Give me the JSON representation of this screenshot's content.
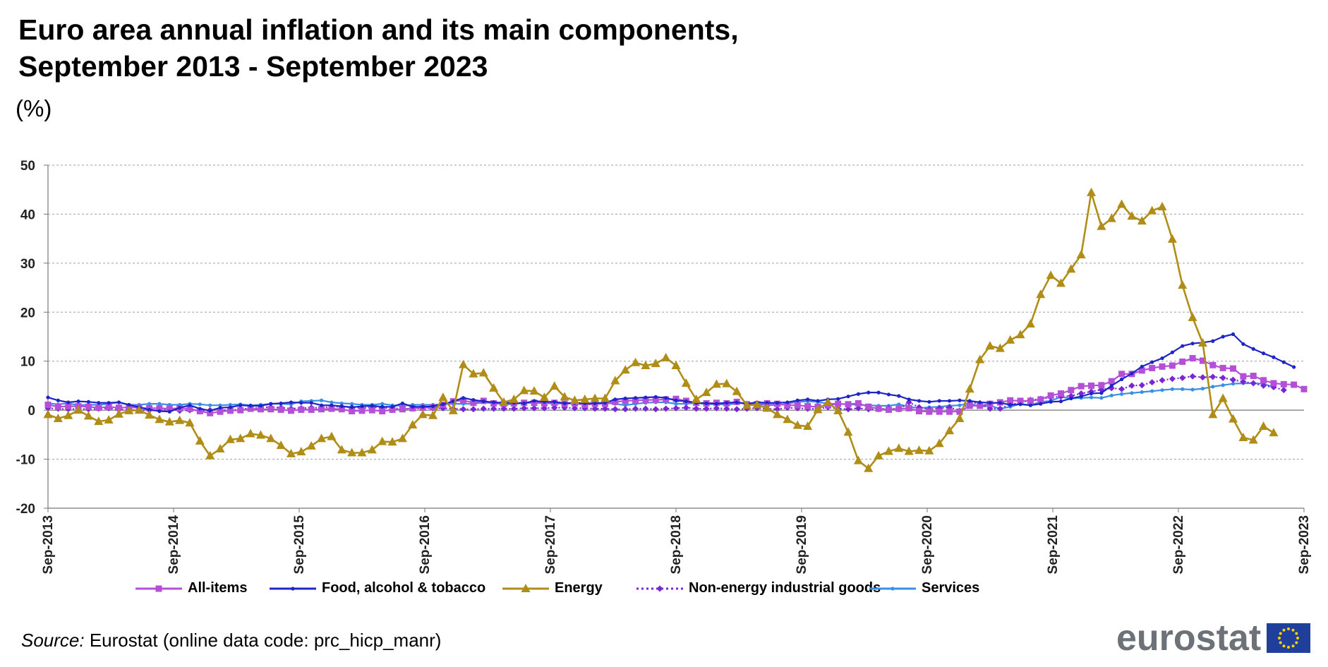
{
  "chart_data": {
    "type": "line",
    "title": "Euro area annual inflation and its main components, September 2013 - September 2023",
    "title_lines": [
      "Euro area annual inflation and its main components,",
      "September 2013 - September 2023"
    ],
    "unit": "(%)",
    "xlabel": "",
    "ylabel": "",
    "ylim": [
      -20,
      50
    ],
    "y_ticks": [
      "50",
      "40",
      "30",
      "20",
      "10",
      "0",
      "-10",
      "-20"
    ],
    "x_tick_labels": [
      "Sep-2013",
      "Sep-2014",
      "Sep-2015",
      "Sep-2016",
      "Sep-2017",
      "Sep-2018",
      "Sep-2019",
      "Sep-2020",
      "Sep-2021",
      "Sep-2022",
      "Sep-2023"
    ],
    "grid": "horizontal dashed",
    "legend_position": "bottom",
    "source_label": "Source:",
    "source_text": " Eurostat (online data code: prc_hicp_manr)",
    "logo": "eurostat",
    "series": [
      {
        "name": "All-items",
        "color": "#b44fd8",
        "marker": "square",
        "values": [
          1.1,
          0.7,
          0.8,
          0.8,
          0.7,
          0.5,
          0.7,
          0.5,
          0.6,
          0.5,
          0.4,
          0.4,
          0.3,
          0.4,
          0.3,
          -0.2,
          -0.6,
          -0.3,
          -0.1,
          0.0,
          0.3,
          0.2,
          0.2,
          0.1,
          -0.1,
          0.1,
          0.1,
          0.2,
          0.3,
          0.2,
          -0.2,
          -0.1,
          0.0,
          -0.2,
          0.1,
          0.2,
          0.4,
          0.5,
          0.6,
          1.1,
          1.8,
          2.0,
          1.5,
          1.9,
          1.4,
          1.3,
          1.4,
          1.5,
          1.5,
          1.4,
          1.5,
          1.3,
          1.4,
          1.1,
          1.3,
          1.3,
          1.7,
          1.9,
          2.0,
          2.1,
          2.1,
          2.2,
          2.3,
          1.9,
          1.5,
          1.4,
          1.5,
          1.4,
          1.7,
          1.2,
          1.2,
          1.4,
          1.3,
          1.0,
          1.0,
          0.8,
          0.7,
          1.0,
          1.3,
          1.2,
          1.4,
          0.7,
          0.3,
          0.1,
          0.3,
          0.4,
          -0.2,
          -0.3,
          -0.3,
          -0.3,
          -0.3,
          0.9,
          0.9,
          1.3,
          1.6,
          2.0,
          1.9,
          1.9,
          2.2,
          3.0,
          3.4,
          4.1,
          4.9,
          5.0,
          5.1,
          5.9,
          7.4,
          7.4,
          8.1,
          8.6,
          8.9,
          9.1,
          9.9,
          10.6,
          10.1,
          9.2,
          8.6,
          8.5,
          6.9,
          7.0,
          6.1,
          5.5,
          5.3,
          5.2,
          4.3
        ]
      },
      {
        "name": "Food, alcohol & tobacco",
        "color": "#1f24c8",
        "marker": "dot",
        "values": [
          2.6,
          2.0,
          1.6,
          1.8,
          1.7,
          1.5,
          1.5,
          1.6,
          1.1,
          0.6,
          0.1,
          -0.2,
          -0.3,
          0.5,
          1.0,
          0.3,
          -0.1,
          0.5,
          0.6,
          1.0,
          0.9,
          0.9,
          1.3,
          1.4,
          1.6,
          1.5,
          1.5,
          1.0,
          1.0,
          0.8,
          0.6,
          0.8,
          0.9,
          0.7,
          0.7,
          1.4,
          0.7,
          0.7,
          0.8,
          1.2,
          1.8,
          2.5,
          2.1,
          1.8,
          1.6,
          1.5,
          1.5,
          1.4,
          1.9,
          1.7,
          1.7,
          1.4,
          1.5,
          1.4,
          1.4,
          1.5,
          2.2,
          2.4,
          2.5,
          2.6,
          2.7,
          2.5,
          2.0,
          1.8,
          1.5,
          1.4,
          1.3,
          1.5,
          1.6,
          1.3,
          1.6,
          1.5,
          1.5,
          1.6,
          2.0,
          2.2,
          1.9,
          2.2,
          2.3,
          2.8,
          3.3,
          3.6,
          3.6,
          3.2,
          2.9,
          2.2,
          1.9,
          1.7,
          1.9,
          1.9,
          2.0,
          1.9,
          1.6,
          1.5,
          1.5,
          1.1,
          1.2,
          1.0,
          1.3,
          1.7,
          1.8,
          2.4,
          2.8,
          3.4,
          3.5,
          5.0,
          6.3,
          7.5,
          8.9,
          9.8,
          10.6,
          11.8,
          13.1,
          13.6,
          13.8,
          14.1,
          15.0,
          15.5,
          13.5,
          12.5,
          11.6,
          10.8,
          9.8,
          8.8
        ]
      },
      {
        "name": "Energy",
        "color": "#b08d17",
        "marker": "triangle",
        "values": [
          -0.9,
          -1.7,
          -1.1,
          0.0,
          -1.2,
          -2.3,
          -2.0,
          -0.8,
          -0.1,
          0.0,
          -1.0,
          -1.9,
          -2.4,
          -2.1,
          -2.6,
          -6.3,
          -9.3,
          -7.9,
          -6.0,
          -5.8,
          -4.8,
          -5.1,
          -5.8,
          -7.2,
          -8.9,
          -8.5,
          -7.3,
          -5.8,
          -5.4,
          -8.1,
          -8.7,
          -8.7,
          -8.1,
          -6.4,
          -6.5,
          -5.8,
          -3.0,
          -0.9,
          -1.1,
          2.6,
          -0.1,
          9.3,
          7.4,
          7.6,
          4.5,
          1.6,
          2.2,
          4.0,
          3.9,
          2.6,
          4.9,
          2.7,
          2.0,
          2.2,
          2.4,
          2.4,
          6.0,
          8.2,
          9.7,
          9.1,
          9.5,
          10.7,
          9.1,
          5.5,
          2.2,
          3.6,
          5.3,
          5.4,
          3.8,
          1.0,
          1.1,
          0.4,
          -0.9,
          -1.9,
          -3.1,
          -3.3,
          0.1,
          1.6,
          -0.1,
          -4.5,
          -10.3,
          -11.9,
          -9.3,
          -8.4,
          -7.8,
          -8.4,
          -8.2,
          -8.3,
          -6.8,
          -4.2,
          -1.7,
          4.3,
          10.3,
          13.1,
          12.6,
          14.3,
          15.4,
          17.6,
          23.6,
          27.5,
          25.9,
          28.8,
          31.7,
          44.4,
          37.5,
          39.1,
          42.0,
          39.6,
          38.6,
          40.7,
          41.5,
          34.9,
          25.5,
          18.9,
          13.7,
          -0.9,
          2.4,
          -1.8,
          -5.6,
          -6.1,
          -3.3,
          -4.6
        ]
      },
      {
        "name": "Non-energy industrial goods",
        "color": "#7a26d4",
        "marker": "diamond",
        "style": "dotted",
        "values": [
          0.4,
          0.3,
          0.2,
          0.3,
          0.2,
          0.3,
          0.4,
          0.1,
          0.1,
          0.0,
          0.0,
          0.0,
          0.2,
          -0.1,
          0.0,
          -0.1,
          0.0,
          0.1,
          -0.1,
          0.3,
          0.3,
          0.6,
          0.6,
          0.5,
          0.3,
          0.4,
          0.5,
          0.5,
          0.7,
          0.7,
          0.6,
          0.4,
          0.6,
          0.5,
          0.4,
          0.3,
          0.3,
          0.4,
          0.4,
          0.4,
          0.3,
          0.2,
          0.2,
          0.3,
          0.3,
          0.3,
          0.3,
          0.4,
          0.4,
          0.4,
          0.5,
          0.5,
          0.4,
          0.4,
          0.3,
          0.3,
          0.2,
          0.2,
          0.3,
          0.3,
          0.2,
          0.3,
          0.4,
          0.5,
          0.3,
          0.3,
          0.4,
          0.3,
          0.2,
          0.3,
          0.4,
          0.3,
          0.2,
          0.5,
          0.4,
          0.3,
          0.3,
          0.6,
          0.3,
          0.2,
          0.4,
          0.2,
          0.2,
          0.4,
          0.2,
          1.6,
          0.6,
          0.2,
          0.4,
          0.6,
          -0.1,
          1.5,
          1.4,
          0.3,
          0.3,
          1.2,
          1.5,
          2.1,
          2.3,
          2.6,
          2.8,
          2.9,
          3.4,
          3.8,
          4.2,
          4.5,
          4.3,
          5.0,
          5.1,
          5.7,
          6.1,
          6.4,
          6.6,
          6.9,
          6.7,
          6.8,
          6.6,
          6.2,
          5.8,
          5.5,
          5.0,
          4.7,
          4.1
        ]
      },
      {
        "name": "Services",
        "color": "#3a8ee6",
        "marker": "dot",
        "values": [
          1.4,
          1.2,
          1.4,
          1.0,
          1.1,
          1.1,
          1.3,
          1.6,
          1.1,
          1.1,
          1.3,
          1.3,
          1.1,
          1.1,
          1.3,
          1.2,
          1.0,
          1.0,
          1.1,
          1.2,
          1.0,
          1.1,
          1.3,
          1.3,
          1.2,
          1.8,
          1.9,
          2.0,
          1.6,
          1.4,
          1.3,
          1.1,
          1.1,
          1.3,
          1.0,
          0.9,
          1.1,
          1.1,
          1.1,
          1.2,
          1.3,
          1.3,
          1.3,
          1.6,
          1.4,
          1.2,
          1.2,
          1.5,
          1.5,
          1.6,
          1.2,
          1.5,
          1.2,
          1.3,
          1.3,
          1.5,
          1.3,
          1.0,
          1.3,
          1.5,
          1.6,
          1.6,
          1.3,
          1.3,
          1.5,
          1.2,
          1.3,
          1.1,
          1.4,
          1.5,
          1.2,
          1.1,
          1.0,
          1.3,
          1.7,
          1.8,
          1.7,
          1.3,
          1.3,
          1.2,
          1.1,
          1.0,
          0.9,
          0.9,
          1.2,
          0.7,
          0.4,
          0.6,
          0.7,
          0.9,
          1.0,
          1.4,
          0.7,
          0.9,
          0.3,
          0.7,
          1.3,
          1.0,
          1.7,
          1.9,
          2.7,
          2.4,
          2.5,
          2.6,
          2.5,
          3.0,
          3.3,
          3.5,
          3.7,
          3.9,
          4.1,
          4.3,
          4.3,
          4.2,
          4.4,
          4.8,
          5.1,
          5.4,
          5.5,
          5.5,
          5.4,
          4.7
        ]
      }
    ]
  }
}
